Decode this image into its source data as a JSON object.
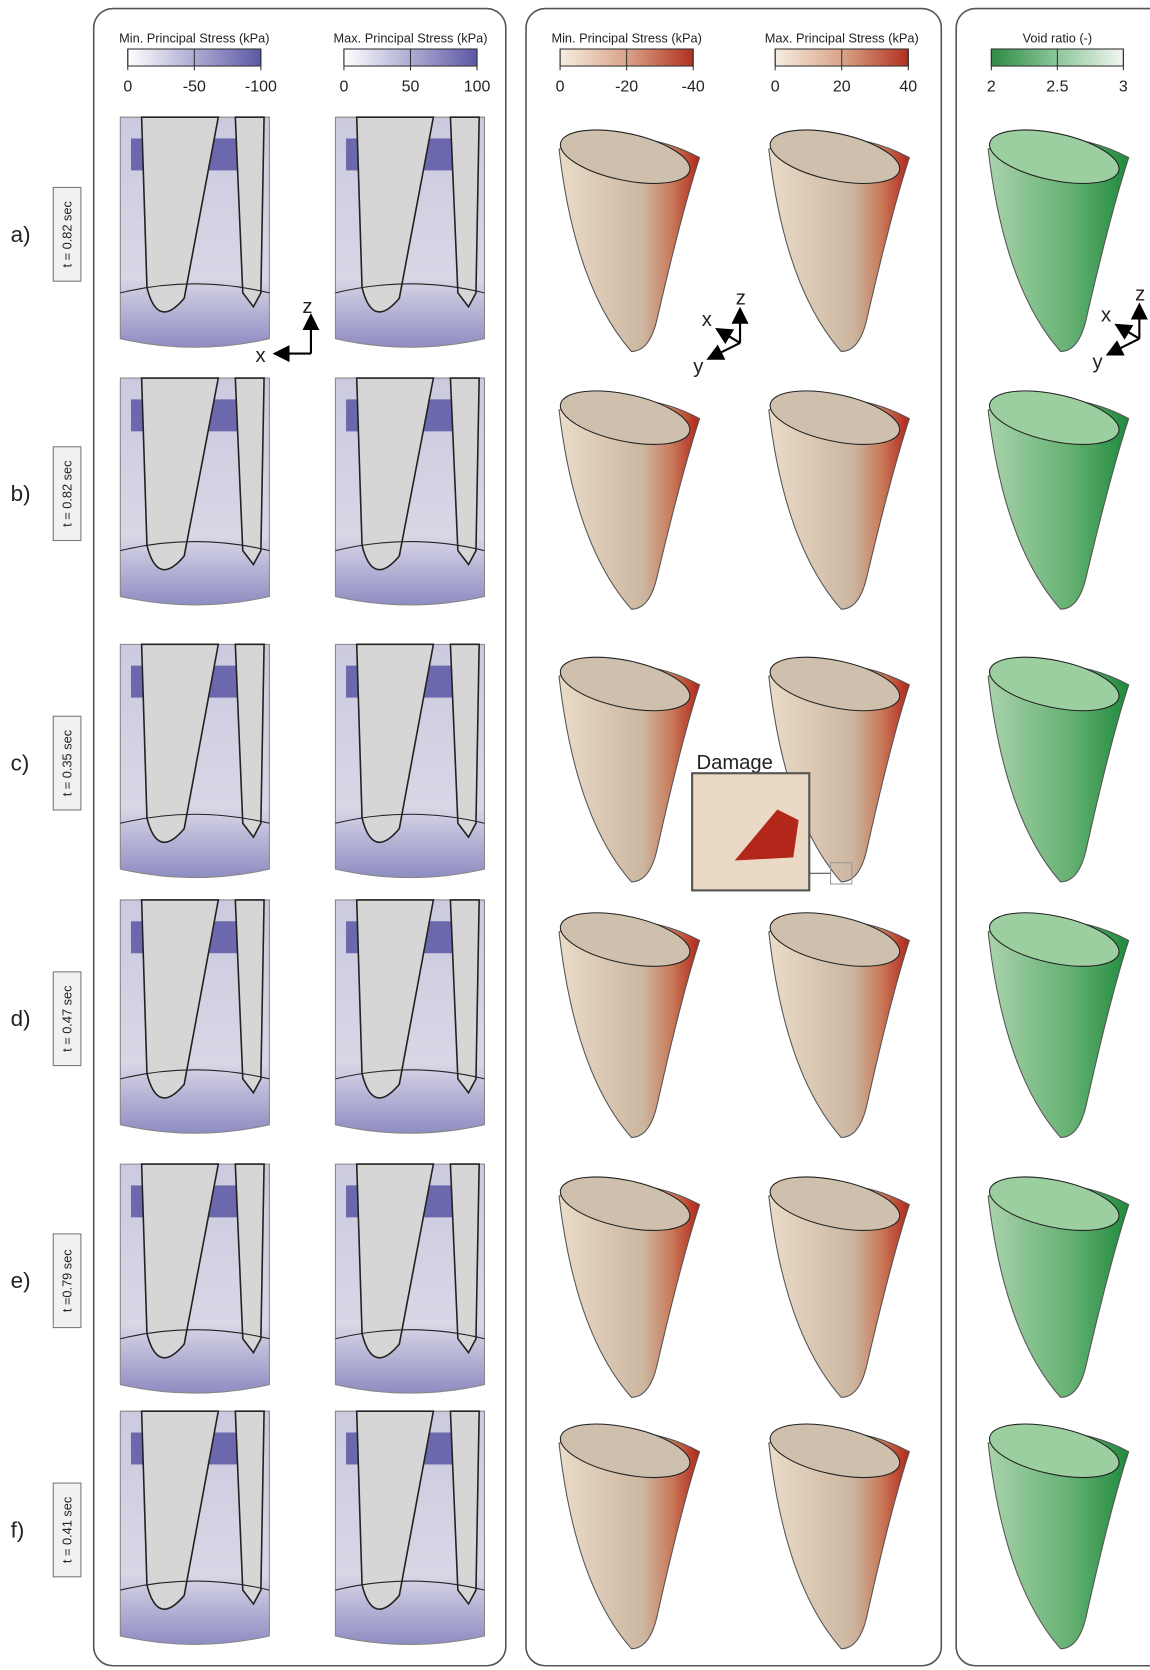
{
  "panels": [
    {
      "colorbars": [
        {
          "title": "Min.  Principal Stress (kPa)",
          "ticks": [
            "0",
            "-50",
            "-100"
          ]
        },
        {
          "title": "Max.  Principal Stress (kPa)",
          "ticks": [
            "0",
            "50",
            "100"
          ]
        }
      ],
      "axes": {
        "z": "z",
        "x": "x"
      }
    },
    {
      "colorbars": [
        {
          "title": "Min.  Principal Stress (kPa)",
          "ticks": [
            "0",
            "-20",
            "-40"
          ]
        },
        {
          "title": "Max.  Principal Stress (kPa)",
          "ticks": [
            "0",
            "20",
            "40"
          ]
        }
      ],
      "axes": {
        "z": "z",
        "x": "x",
        "y": "y"
      },
      "inset": "Damage"
    },
    {
      "colorbars": [
        {
          "title": "Void ratio (-)",
          "ticks": [
            "2",
            "2.5",
            "3"
          ]
        }
      ],
      "axes": {
        "z": "z",
        "x": "x",
        "y": "y"
      }
    }
  ],
  "rows": [
    {
      "label": "a)",
      "time": "t = 0.82 sec"
    },
    {
      "label": "b)",
      "time": "t = 0.82 sec"
    },
    {
      "label": "c)",
      "time": "t = 0.35 sec"
    },
    {
      "label": "d)",
      "time": "t = 0.47 sec"
    },
    {
      "label": "e)",
      "time": "t =0.79 sec"
    },
    {
      "label": "f)",
      "time": "t = 0.41 sec"
    }
  ]
}
